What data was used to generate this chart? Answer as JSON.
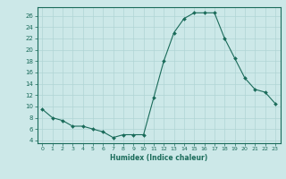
{
  "x": [
    0,
    1,
    2,
    3,
    4,
    5,
    6,
    7,
    8,
    9,
    10,
    11,
    12,
    13,
    14,
    15,
    16,
    17,
    18,
    19,
    20,
    21,
    22,
    23
  ],
  "y": [
    9.5,
    8.0,
    7.5,
    6.5,
    6.5,
    6.0,
    5.5,
    4.5,
    5.0,
    5.0,
    5.0,
    11.5,
    18.0,
    23.0,
    25.5,
    26.5,
    26.5,
    26.5,
    22.0,
    18.5,
    15.0,
    13.0,
    12.5,
    10.5
  ],
  "xlim": [
    -0.5,
    23.5
  ],
  "ylim": [
    3.5,
    27.5
  ],
  "yticks": [
    4,
    6,
    8,
    10,
    12,
    14,
    16,
    18,
    20,
    22,
    24,
    26
  ],
  "xticks": [
    0,
    1,
    2,
    3,
    4,
    5,
    6,
    7,
    8,
    9,
    10,
    11,
    12,
    13,
    14,
    15,
    16,
    17,
    18,
    19,
    20,
    21,
    22,
    23
  ],
  "xlabel": "Humidex (Indice chaleur)",
  "line_color": "#1a6b5a",
  "marker_color": "#1a6b5a",
  "bg_color": "#cce8e8",
  "grid_color": "#b0d4d4",
  "spine_color": "#1a6b5a"
}
